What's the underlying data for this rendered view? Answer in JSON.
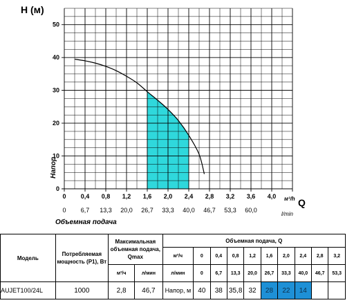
{
  "chart_data": {
    "type": "line",
    "y_axis_title": "H (м)",
    "y_side_label": "Напор",
    "q_label": "Q",
    "x_unit_top": "м³/h",
    "x_unit_bottom": "l/min",
    "xlabel": "Объемная подача",
    "xlim": [
      0,
      4.4
    ],
    "ylim": [
      0,
      55
    ],
    "y_ticks": [
      "0",
      "10",
      "20",
      "30",
      "40",
      "50"
    ],
    "x_ticks_m3h": [
      "0",
      "0,4",
      "0,8",
      "1,2",
      "1,6",
      "2,0",
      "2,4",
      "2,8",
      "3,2",
      "3,6",
      "4,0"
    ],
    "x_ticks_lmin": [
      "0",
      "6,7",
      "13,3",
      "20,0",
      "26,7",
      "33,3",
      "40,0",
      "46,7",
      "53,3",
      "60,0"
    ],
    "grid": true,
    "curve": {
      "x": [
        0.2,
        0.4,
        0.6,
        0.8,
        1.0,
        1.2,
        1.4,
        1.6,
        1.8,
        2.0,
        2.2,
        2.4,
        2.6,
        2.7
      ],
      "y": [
        39.5,
        39.0,
        38.3,
        37.3,
        36.0,
        34.3,
        32.3,
        29.6,
        27.0,
        24.2,
        20.8,
        16.3,
        10.5,
        4.5
      ]
    },
    "highlight_range": [
      1.6,
      2.4
    ],
    "colors": {
      "curve": "#000000",
      "highlight": "#2fd8dc",
      "grid": "#000000"
    }
  },
  "table": {
    "header": {
      "model": "Модель",
      "power": "Потребляемая мощность (P1), Вт",
      "max_flow": "Максимальная объемная подача, Qmax",
      "flow": "Объемная подача, Q",
      "unit_m3h": "м³/ч",
      "unit_lmin": "л/мин"
    },
    "q_m3h": [
      "0",
      "0,4",
      "0,8",
      "1,2",
      "1,6",
      "2,0",
      "2,4",
      "2,8",
      "3,2"
    ],
    "q_lmin": [
      "0",
      "6,7",
      "13,3",
      "20,0",
      "26,7",
      "33,3",
      "40,0",
      "46,7",
      "53,3"
    ],
    "row": {
      "model": "AUJET100/24L",
      "power": "1000",
      "qmax_m3h": "2,8",
      "qmax_lmin": "46,7",
      "head_label": "Напор, м",
      "heads": [
        "40",
        "38",
        "35,8",
        "32",
        "28",
        "22",
        "14"
      ]
    },
    "highlight_color": "#1e90d6"
  }
}
